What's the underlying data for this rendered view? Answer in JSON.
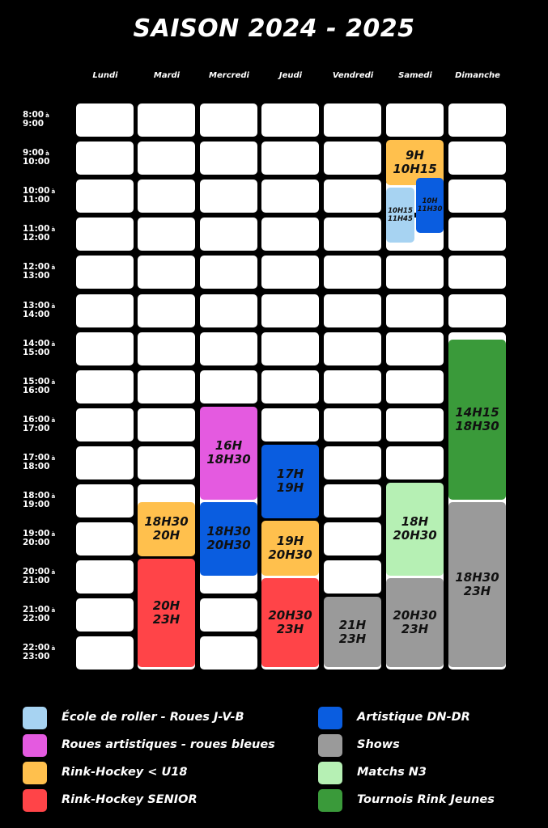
{
  "title": "SAISON 2024 - 2025",
  "days": [
    "Lundi",
    "Mardi",
    "Mercredi",
    "Jeudi",
    "Vendredi",
    "Samedi",
    "Dimanche"
  ],
  "time_slots": [
    {
      "start": "8:00",
      "end": "9:00"
    },
    {
      "start": "9:00",
      "end": "10:00"
    },
    {
      "start": "10:00",
      "end": "11:00"
    },
    {
      "start": "11:00",
      "end": "12:00"
    },
    {
      "start": "12:00",
      "end": "13:00"
    },
    {
      "start": "13:00",
      "end": "14:00"
    },
    {
      "start": "14:00",
      "end": "15:00"
    },
    {
      "start": "15:00",
      "end": "16:00"
    },
    {
      "start": "16:00",
      "end": "17:00"
    },
    {
      "start": "17:00",
      "end": "18:00"
    },
    {
      "start": "18:00",
      "end": "19:00"
    },
    {
      "start": "19:00",
      "end": "20:00"
    },
    {
      "start": "20:00",
      "end": "21:00"
    },
    {
      "start": "21:00",
      "end": "22:00"
    },
    {
      "start": "22:00",
      "end": "23:00"
    }
  ],
  "time_separator": "à",
  "events": [
    {
      "day": "Samedi",
      "start": "9H",
      "end": "10H15",
      "category": "rink_u18"
    },
    {
      "day": "Samedi",
      "start": "10H15",
      "end": "11H45",
      "category": "ecole"
    },
    {
      "day": "Samedi",
      "start": "10H",
      "end": "11H30",
      "category": "artistique_dn"
    },
    {
      "day": "Mercredi",
      "start": "16H",
      "end": "18H30",
      "category": "roues_artistiques"
    },
    {
      "day": "Mercredi",
      "start": "18H30",
      "end": "20H30",
      "category": "artistique_dn"
    },
    {
      "day": "Mardi",
      "start": "18H30",
      "end": "20H",
      "category": "rink_u18"
    },
    {
      "day": "Mardi",
      "start": "20H",
      "end": "23H",
      "category": "rink_senior"
    },
    {
      "day": "Jeudi",
      "start": "17H",
      "end": "19H",
      "category": "artistique_dn"
    },
    {
      "day": "Jeudi",
      "start": "19H",
      "end": "20H30",
      "category": "rink_u18"
    },
    {
      "day": "Jeudi",
      "start": "20H30",
      "end": "23H",
      "category": "rink_senior"
    },
    {
      "day": "Vendredi",
      "start": "21H",
      "end": "23H",
      "category": "shows"
    },
    {
      "day": "Samedi",
      "start": "18H",
      "end": "20H30",
      "category": "matchs_n3"
    },
    {
      "day": "Samedi",
      "start": "20H30",
      "end": "23H",
      "category": "shows"
    },
    {
      "day": "Dimanche",
      "start": "14H15",
      "end": "18H30",
      "category": "tournois"
    },
    {
      "day": "Dimanche",
      "start": "18H30",
      "end": "23H",
      "category": "shows"
    }
  ],
  "legend": [
    {
      "key": "ecole",
      "label": "École de roller - Roues J-V-B",
      "color": "#A7D3F2"
    },
    {
      "key": "roues_artistiques",
      "label": "Roues artistiques - roues bleues",
      "color": "#E45AE0"
    },
    {
      "key": "rink_u18",
      "label": "Rink-Hockey < U18",
      "color": "#FFC04D"
    },
    {
      "key": "rink_senior",
      "label": "Rink-Hockey SENIOR",
      "color": "#FF4448"
    },
    {
      "key": "artistique_dn",
      "label": "Artistique DN-DR",
      "color": "#0A5DE0"
    },
    {
      "key": "shows",
      "label": "Shows",
      "color": "#9A9A9A"
    },
    {
      "key": "matchs_n3",
      "label": "Matchs N3",
      "color": "#B6F0B4"
    },
    {
      "key": "tournois",
      "label": "Tournois Rink Jeunes",
      "color": "#3A9A3A"
    }
  ]
}
